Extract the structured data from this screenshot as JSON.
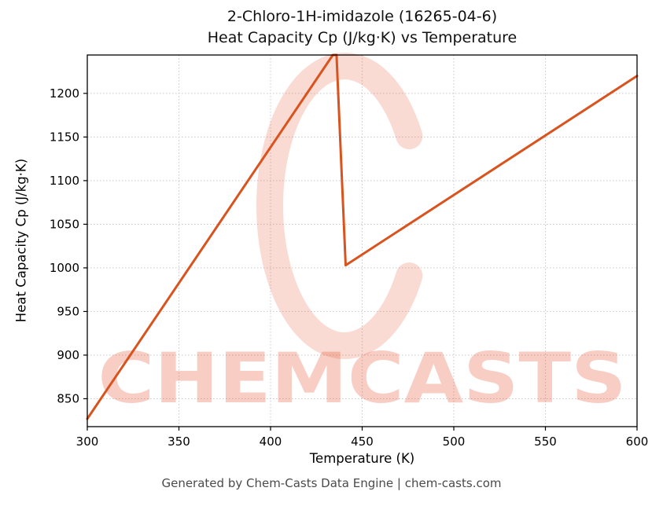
{
  "figure": {
    "title_line1": "2-Chloro-1H-imidazole (16265-04-6)",
    "title_line2": "Heat Capacity Cp (J/kg·K) vs Temperature",
    "footer": "Generated by Chem-Casts Data Engine | chem-casts.com"
  },
  "chart_data": {
    "type": "line",
    "title": "2-Chloro-1H-imidazole (16265-04-6)",
    "subtitle": "Heat Capacity Cp (J/kg·K) vs Temperature",
    "xlabel": "Temperature (K)",
    "ylabel": "Heat Capacity Cp (J/kg·K)",
    "xlim": [
      300,
      600
    ],
    "ylim": [
      818,
      1244
    ],
    "xticks": [
      300,
      350,
      400,
      450,
      500,
      550,
      600
    ],
    "yticks": [
      850,
      900,
      950,
      1000,
      1050,
      1100,
      1150,
      1200
    ],
    "grid": true,
    "legend": false,
    "line_color": "#d9531e",
    "grid_color": "#c8c8c8",
    "watermark_color": "#e85a38",
    "watermark": "CHEMCASTS",
    "series": [
      {
        "name": "Cp",
        "points": [
          [
            300,
            827
          ],
          [
            434,
            1244
          ],
          [
            436,
            1244
          ],
          [
            441,
            1003
          ],
          [
            600,
            1220
          ]
        ]
      }
    ]
  }
}
